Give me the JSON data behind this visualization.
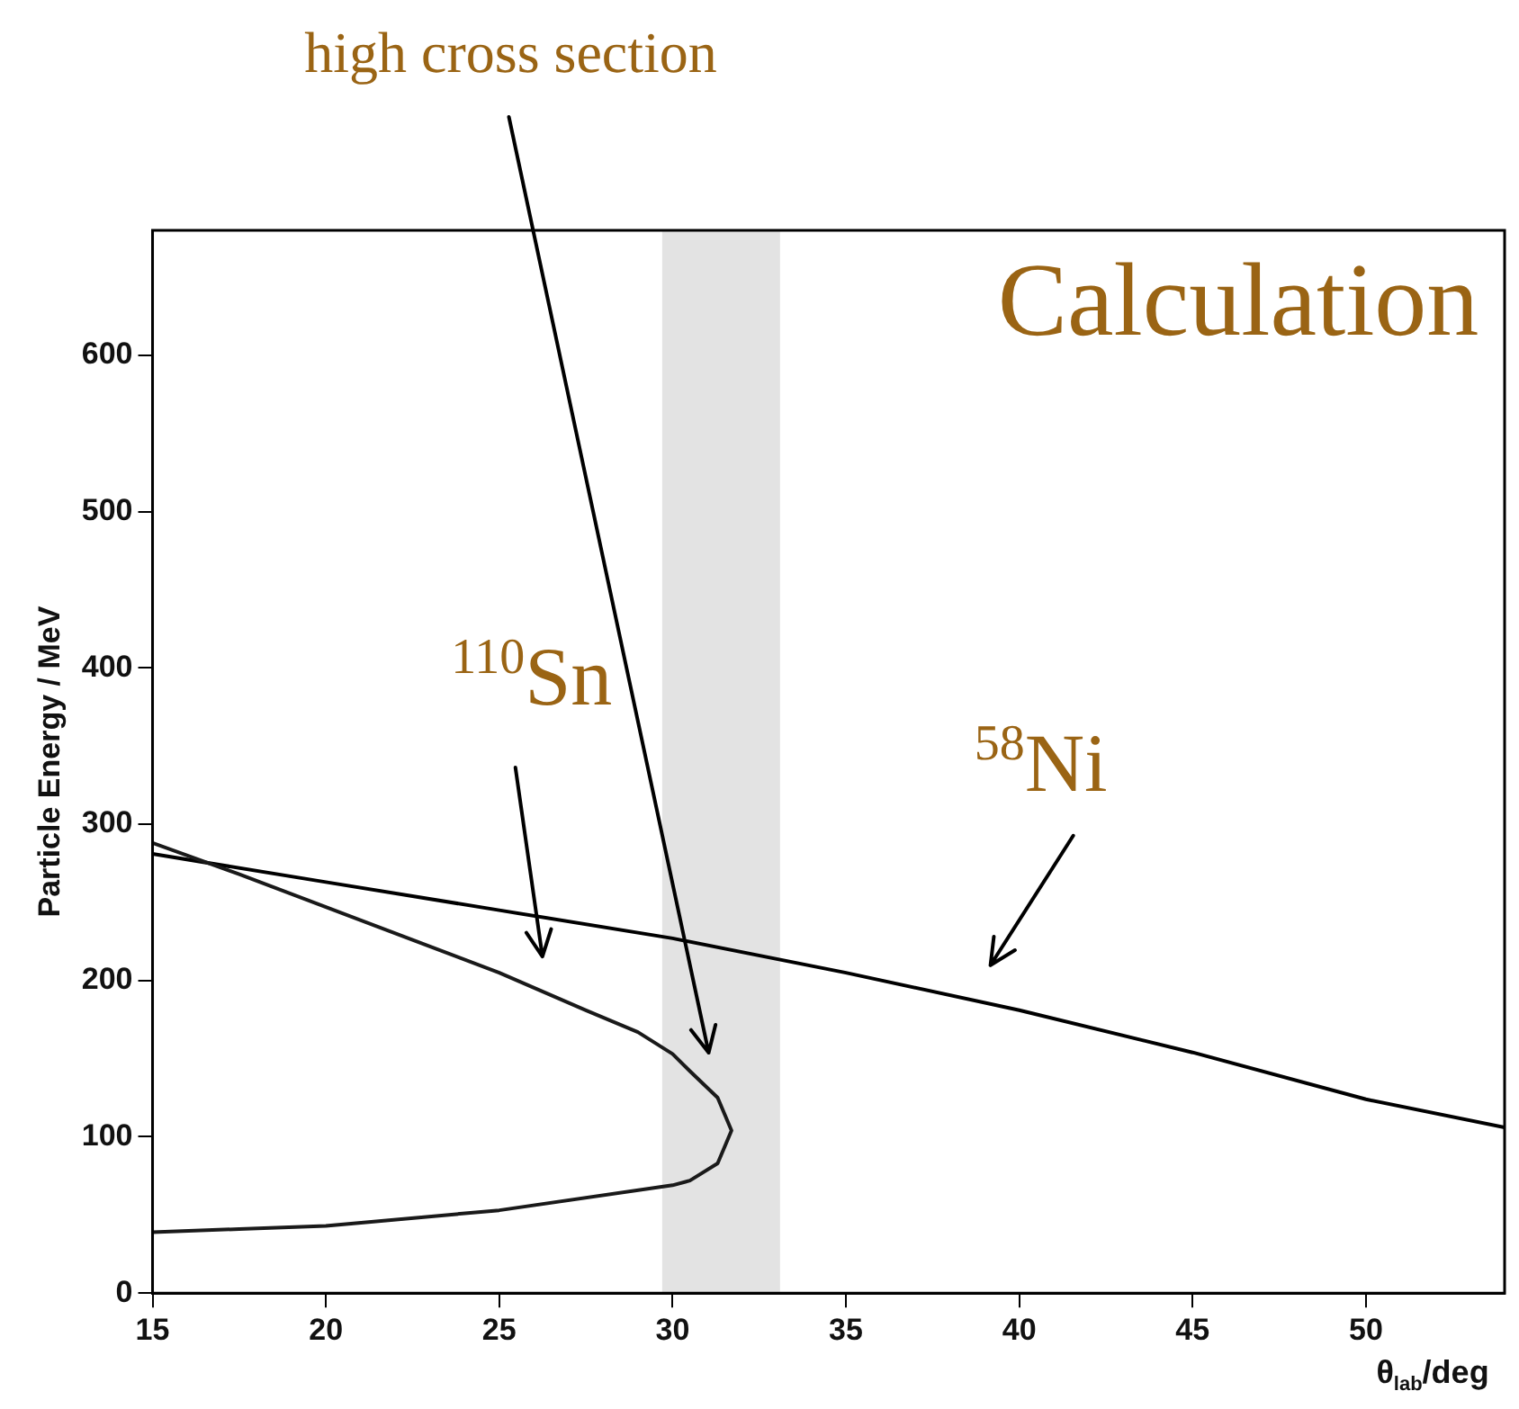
{
  "chart_data": {
    "type": "line",
    "xlabel": "θ$_{lab}$/deg",
    "ylabel": "Particle Energy / MeV",
    "xlim": [
      15,
      54
    ],
    "xticks": [
      15,
      20,
      25,
      30,
      35,
      40,
      45,
      50
    ],
    "ylim": [
      0,
      680
    ],
    "yticks": [
      0,
      100,
      200,
      300,
      400,
      500,
      600
    ],
    "series": [
      {
        "name": "$^{110}$Sn",
        "color": "#1a1a1a",
        "x": [
          15,
          17.5,
          20,
          22.5,
          25,
          27.5,
          29,
          30,
          30.5,
          31.3,
          31.7,
          31.3,
          30.5,
          30,
          25,
          20,
          17.5,
          15
        ],
        "values": [
          288,
          268,
          247,
          226,
          205,
          181,
          167,
          153,
          142,
          125,
          104,
          83,
          72,
          69,
          53,
          43,
          41,
          39
        ]
      },
      {
        "name": "$^{58}$Ni",
        "color": "#000000",
        "x": [
          15,
          20,
          25,
          30,
          35,
          40,
          45,
          50,
          54
        ],
        "values": [
          281,
          263,
          245,
          227,
          205,
          181,
          154,
          124,
          106
        ]
      }
    ],
    "bands": [
      {
        "axis": "x",
        "from": 29.7,
        "to": 33.1,
        "color": "#e3e3e3"
      }
    ],
    "annotations": [
      "high cross section",
      "Calculation"
    ]
  }
}
